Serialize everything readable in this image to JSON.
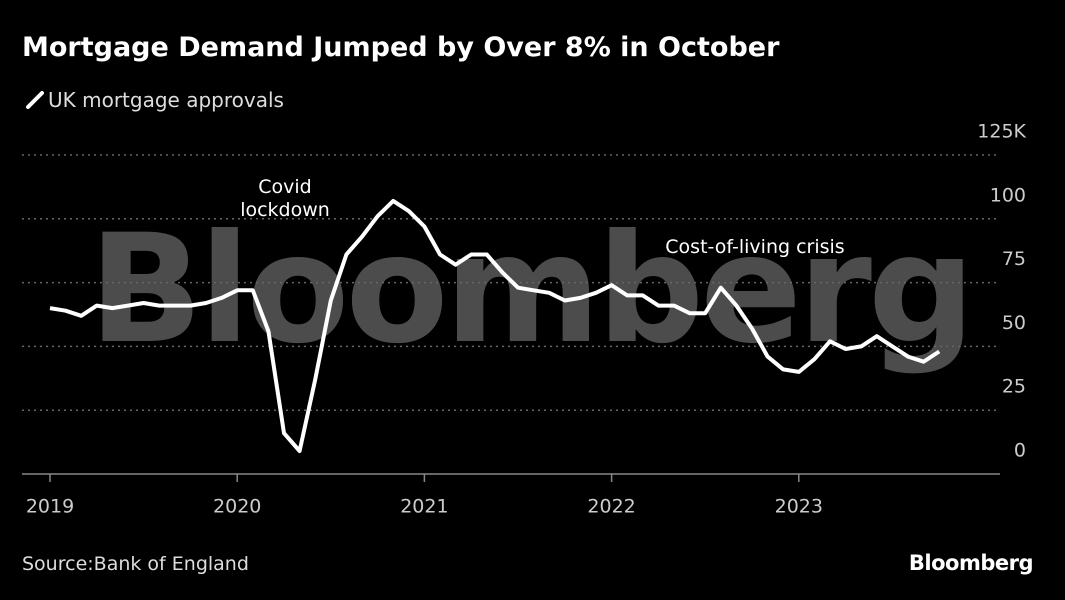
{
  "chart_data": {
    "type": "line",
    "title": "Mortgage Demand Jumped by Over 8% in October",
    "source": "Source:Bank of England",
    "brand": "Bloomberg",
    "watermark": "Bloomberg",
    "annotations": [
      "Covid lockdown",
      "Cost-of-living crisis"
    ],
    "categories": [
      "2019",
      null,
      null,
      null,
      null,
      null,
      null,
      null,
      null,
      null,
      null,
      null,
      "2020",
      null,
      null,
      null,
      null,
      null,
      null,
      null,
      null,
      null,
      null,
      null,
      "2021",
      null,
      null,
      null,
      null,
      null,
      null,
      null,
      null,
      null,
      null,
      null,
      "2022",
      null,
      null,
      null,
      null,
      null,
      null,
      null,
      null,
      null,
      null,
      null,
      "2023",
      null,
      null,
      null,
      null,
      null,
      null,
      null,
      null,
      null
    ],
    "series": [
      {
        "name": "UK mortgage approvals",
        "color": "#ffffff",
        "values": [
          65,
          64,
          62,
          66,
          65,
          66,
          67,
          66,
          66,
          66,
          67,
          69,
          72,
          72,
          56,
          16,
          9,
          37,
          68,
          86,
          93,
          101,
          107,
          103,
          97,
          86,
          82,
          86,
          86,
          79,
          73,
          72,
          71,
          68,
          69,
          71,
          74,
          70,
          70,
          66,
          66,
          63,
          63,
          73,
          66,
          57,
          46,
          41,
          40,
          45,
          52,
          49,
          50,
          54,
          50,
          46,
          44,
          48
        ]
      }
    ],
    "ylim": [
      0,
      125
    ],
    "yticks": [
      0,
      25,
      50,
      75,
      100,
      {
        "value": 125,
        "label": "125K"
      }
    ],
    "grid": true
  }
}
